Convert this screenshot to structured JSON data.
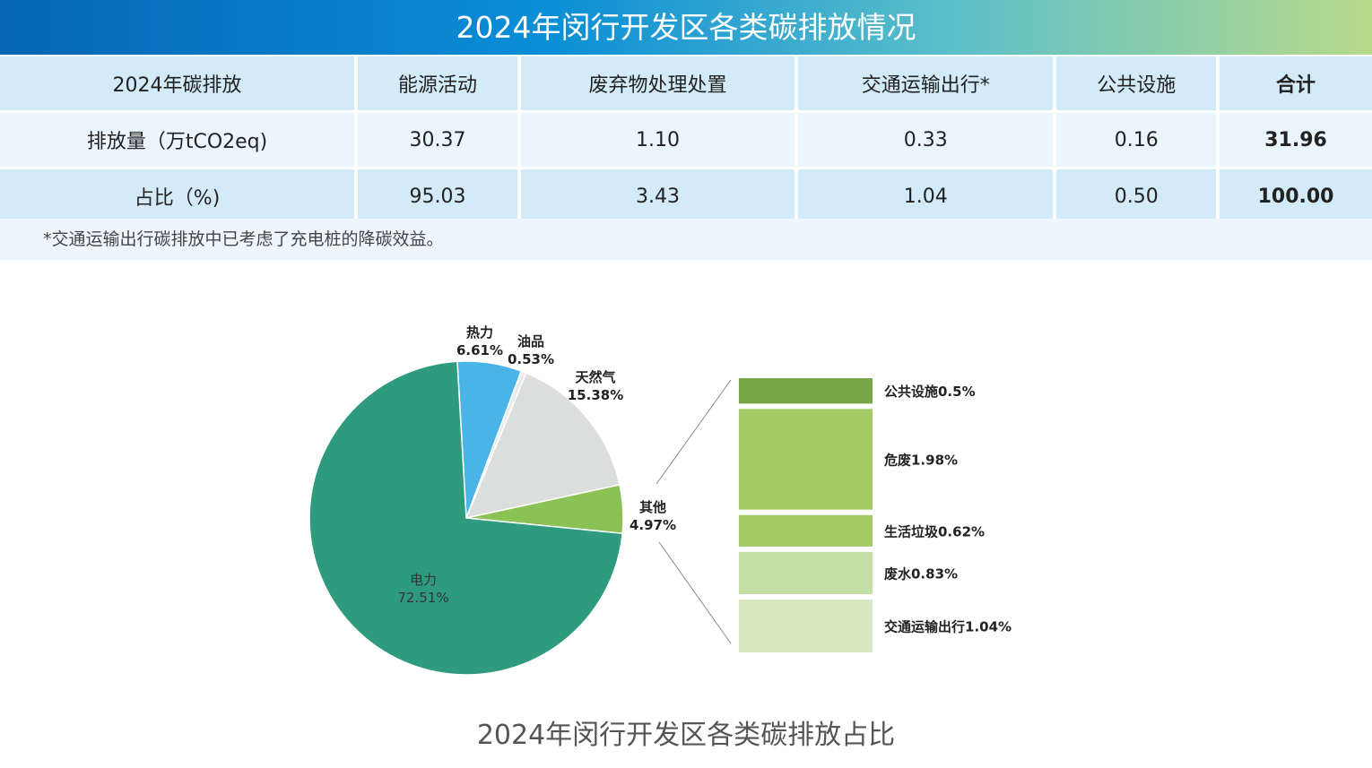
{
  "title": "2024年闵行开发区各类碳排放情况",
  "table": {
    "headers": [
      "2024年碳排放",
      "能源活动",
      "废弃物处理处置",
      "交通运输出行*",
      "公共设施",
      "合计"
    ],
    "rows": [
      [
        "排放量（万tCO2eq)",
        "30.37",
        "1.10",
        "0.33",
        "0.16",
        "31.96"
      ],
      [
        "占比（%)",
        "95.03",
        "3.43",
        "1.04",
        "0.50",
        "100.00"
      ]
    ]
  },
  "note": "*交通运输出行碳排放中已考虑了充电桩的降碳效益。",
  "chart_data": {
    "type": "pie",
    "title": "2024年闵行开发区各类碳排放占比",
    "slices": [
      {
        "label": "热力",
        "value": 6.61,
        "text": "6.61%",
        "color": "#4ab4e6"
      },
      {
        "label": "油品",
        "value": 0.53,
        "text": "0.53%",
        "color": "#e8eaea"
      },
      {
        "label": "天然气",
        "value": 15.38,
        "text": "15.38%",
        "color": "#dcdddd"
      },
      {
        "label": "其他",
        "value": 4.97,
        "text": "4.97%",
        "color": "#8bc255"
      },
      {
        "label": "电力",
        "value": 72.51,
        "text": "72.51%",
        "color": "#2f9b7e"
      }
    ],
    "breakdown": [
      {
        "label": "公共设施0.5%",
        "value": 0.5,
        "color": "#76a744"
      },
      {
        "label": "危废1.98%",
        "value": 1.98,
        "color": "#a3cc66"
      },
      {
        "label": "生活垃圾0.62%",
        "value": 0.62,
        "color": "#a3cc66"
      },
      {
        "label": "废水0.83%",
        "value": 0.83,
        "color": "#c5dfa5"
      },
      {
        "label": "交通运输出行1.04%",
        "value": 1.04,
        "color": "#d8e8c0"
      }
    ]
  }
}
